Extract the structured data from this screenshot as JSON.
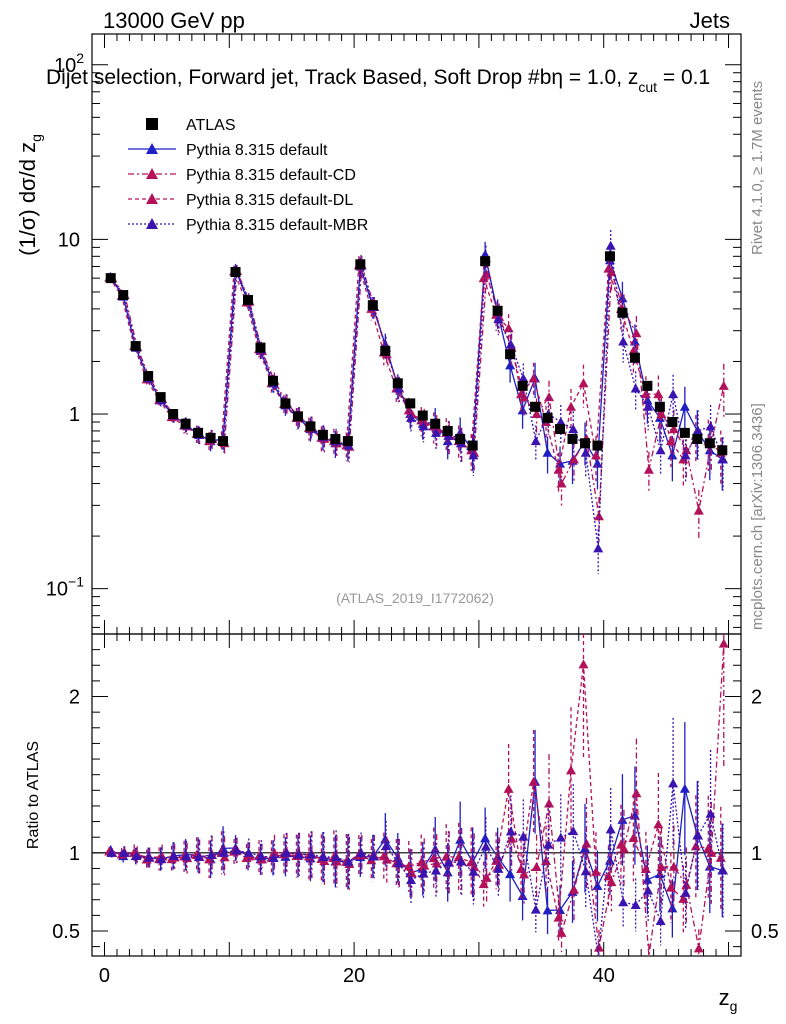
{
  "header": {
    "energy": "13000 GeV pp",
    "category": "Jets",
    "subtitle_main": "Dijet selection, Forward jet, Track Based, Soft Drop #b",
    "subtitle_eta": "η = 1.0, z",
    "subtitle_sub": "cut",
    "subtitle_tail": " = 0.1",
    "ref_id": "(ATLAS_2019_I1772062)",
    "side_rivet": "Rivet 4.1.0, ≥ 1.7M events",
    "side_mcplots": "mcplots.cern.ch [arXiv:1306.3436]"
  },
  "colors": {
    "data": "#000000",
    "default": "#1f1fc4",
    "cd": "#b3125a",
    "dl": "#b3125a",
    "mbr": "#3b14b0"
  },
  "chart_data": {
    "type": "line",
    "title": "13000 GeV pp — Jets",
    "xlabel": "z_g",
    "ylabel": "(1/σ) dσ/d z_g",
    "ratio_ylabel": "Ratio to ATLAS",
    "xlim": [
      -1,
      51
    ],
    "ylim": [
      0.055,
      150
    ],
    "ratio_ylim": [
      0.34,
      2.4
    ],
    "yscale": "log",
    "x_ticks": [
      "0",
      "20",
      "40"
    ],
    "y_ticks": [
      "10^-1",
      "1",
      "10",
      "10^2"
    ],
    "ratio_y_ticks": [
      "0.5",
      "1",
      "2"
    ],
    "legend": [
      "ATLAS",
      "Pythia 8.315 default",
      "Pythia 8.315 default-CD",
      "Pythia 8.315 default-DL",
      "Pythia 8.315 default-MBR"
    ],
    "legend_position": "top-left",
    "x": [
      0.5,
      1.5,
      2.5,
      3.5,
      4.5,
      5.5,
      6.5,
      7.5,
      8.5,
      9.5,
      10.5,
      11.5,
      12.5,
      13.5,
      14.5,
      15.5,
      16.5,
      17.5,
      18.5,
      19.5,
      20.5,
      21.5,
      22.5,
      23.5,
      24.5,
      25.5,
      26.5,
      27.5,
      28.5,
      29.5,
      30.5,
      31.5,
      32.5,
      33.5,
      34.5,
      35.5,
      36.5,
      37.5,
      38.5,
      39.5,
      40.5,
      41.5,
      42.5,
      43.5,
      44.5,
      45.5,
      46.5,
      47.5,
      48.5,
      49.5
    ],
    "series": [
      {
        "name": "ATLAS",
        "values": [
          6.0,
          4.8,
          2.45,
          1.65,
          1.25,
          1.0,
          0.88,
          0.78,
          0.73,
          0.7,
          6.5,
          4.5,
          2.4,
          1.55,
          1.15,
          0.97,
          0.85,
          0.76,
          0.72,
          0.7,
          7.2,
          4.2,
          2.3,
          1.5,
          1.15,
          0.98,
          0.88,
          0.8,
          0.72,
          0.66,
          7.5,
          3.9,
          2.2,
          1.45,
          1.1,
          0.95,
          0.82,
          0.72,
          0.68,
          0.66,
          8.0,
          3.8,
          2.1,
          1.45,
          1.1,
          0.9,
          0.78,
          0.72,
          0.68,
          0.62
        ]
      },
      {
        "name": "Pythia 8.315 default",
        "values": [
          6.1,
          4.7,
          2.4,
          1.6,
          1.2,
          0.98,
          0.87,
          0.77,
          0.7,
          0.72,
          6.7,
          4.4,
          2.3,
          1.5,
          1.12,
          0.95,
          0.82,
          0.74,
          0.68,
          0.66,
          7.0,
          4.1,
          2.5,
          1.45,
          1.0,
          0.88,
          0.9,
          0.7,
          0.78,
          0.62,
          8.2,
          3.8,
          1.9,
          1.05,
          1.6,
          0.6,
          0.52,
          0.54,
          0.7,
          0.52,
          7.6,
          4.6,
          2.6,
          1.2,
          0.95,
          0.58,
          1.1,
          0.8,
          0.62,
          0.55
        ]
      },
      {
        "name": "Pythia 8.315 default-CD",
        "values": [
          6.0,
          4.8,
          2.42,
          1.6,
          1.22,
          0.97,
          0.85,
          0.76,
          0.72,
          0.68,
          6.6,
          4.4,
          2.3,
          1.55,
          1.15,
          0.96,
          0.84,
          0.72,
          0.68,
          0.65,
          7.1,
          4.1,
          2.2,
          1.4,
          1.0,
          0.9,
          0.82,
          0.75,
          0.68,
          0.6,
          6.3,
          3.6,
          2.4,
          1.25,
          1.0,
          1.25,
          0.4,
          0.55,
          0.72,
          0.26,
          6.5,
          3.9,
          2.9,
          0.48,
          1.0,
          0.82,
          0.62,
          0.28,
          0.68,
          1.45
        ]
      },
      {
        "name": "Pythia 8.315 default-DL",
        "values": [
          6.05,
          4.75,
          2.45,
          1.58,
          1.2,
          0.96,
          0.86,
          0.77,
          0.7,
          0.7,
          6.55,
          4.35,
          2.35,
          1.5,
          1.14,
          0.95,
          0.83,
          0.73,
          0.7,
          0.66,
          7.1,
          4.0,
          2.25,
          1.4,
          1.05,
          0.92,
          0.85,
          0.78,
          0.7,
          0.62,
          6.0,
          3.7,
          3.1,
          1.3,
          1.6,
          0.9,
          0.48,
          1.1,
          1.5,
          0.58,
          6.8,
          4.0,
          2.3,
          1.3,
          1.3,
          0.7,
          0.55,
          0.75,
          0.7,
          0.6
        ]
      },
      {
        "name": "Pythia 8.315 default-MBR",
        "values": [
          6.0,
          4.8,
          2.4,
          1.6,
          1.2,
          0.98,
          0.86,
          0.76,
          0.72,
          0.7,
          6.6,
          4.5,
          2.35,
          1.5,
          1.15,
          0.96,
          0.84,
          0.74,
          0.7,
          0.66,
          7.2,
          4.1,
          2.4,
          1.4,
          0.95,
          0.85,
          0.78,
          0.75,
          0.68,
          0.58,
          7.8,
          3.5,
          2.5,
          1.6,
          0.7,
          1.0,
          0.9,
          0.82,
          0.6,
          0.17,
          9.2,
          2.6,
          1.4,
          1.1,
          0.62,
          1.3,
          0.58,
          0.8,
          0.85,
          0.55
        ]
      }
    ]
  }
}
